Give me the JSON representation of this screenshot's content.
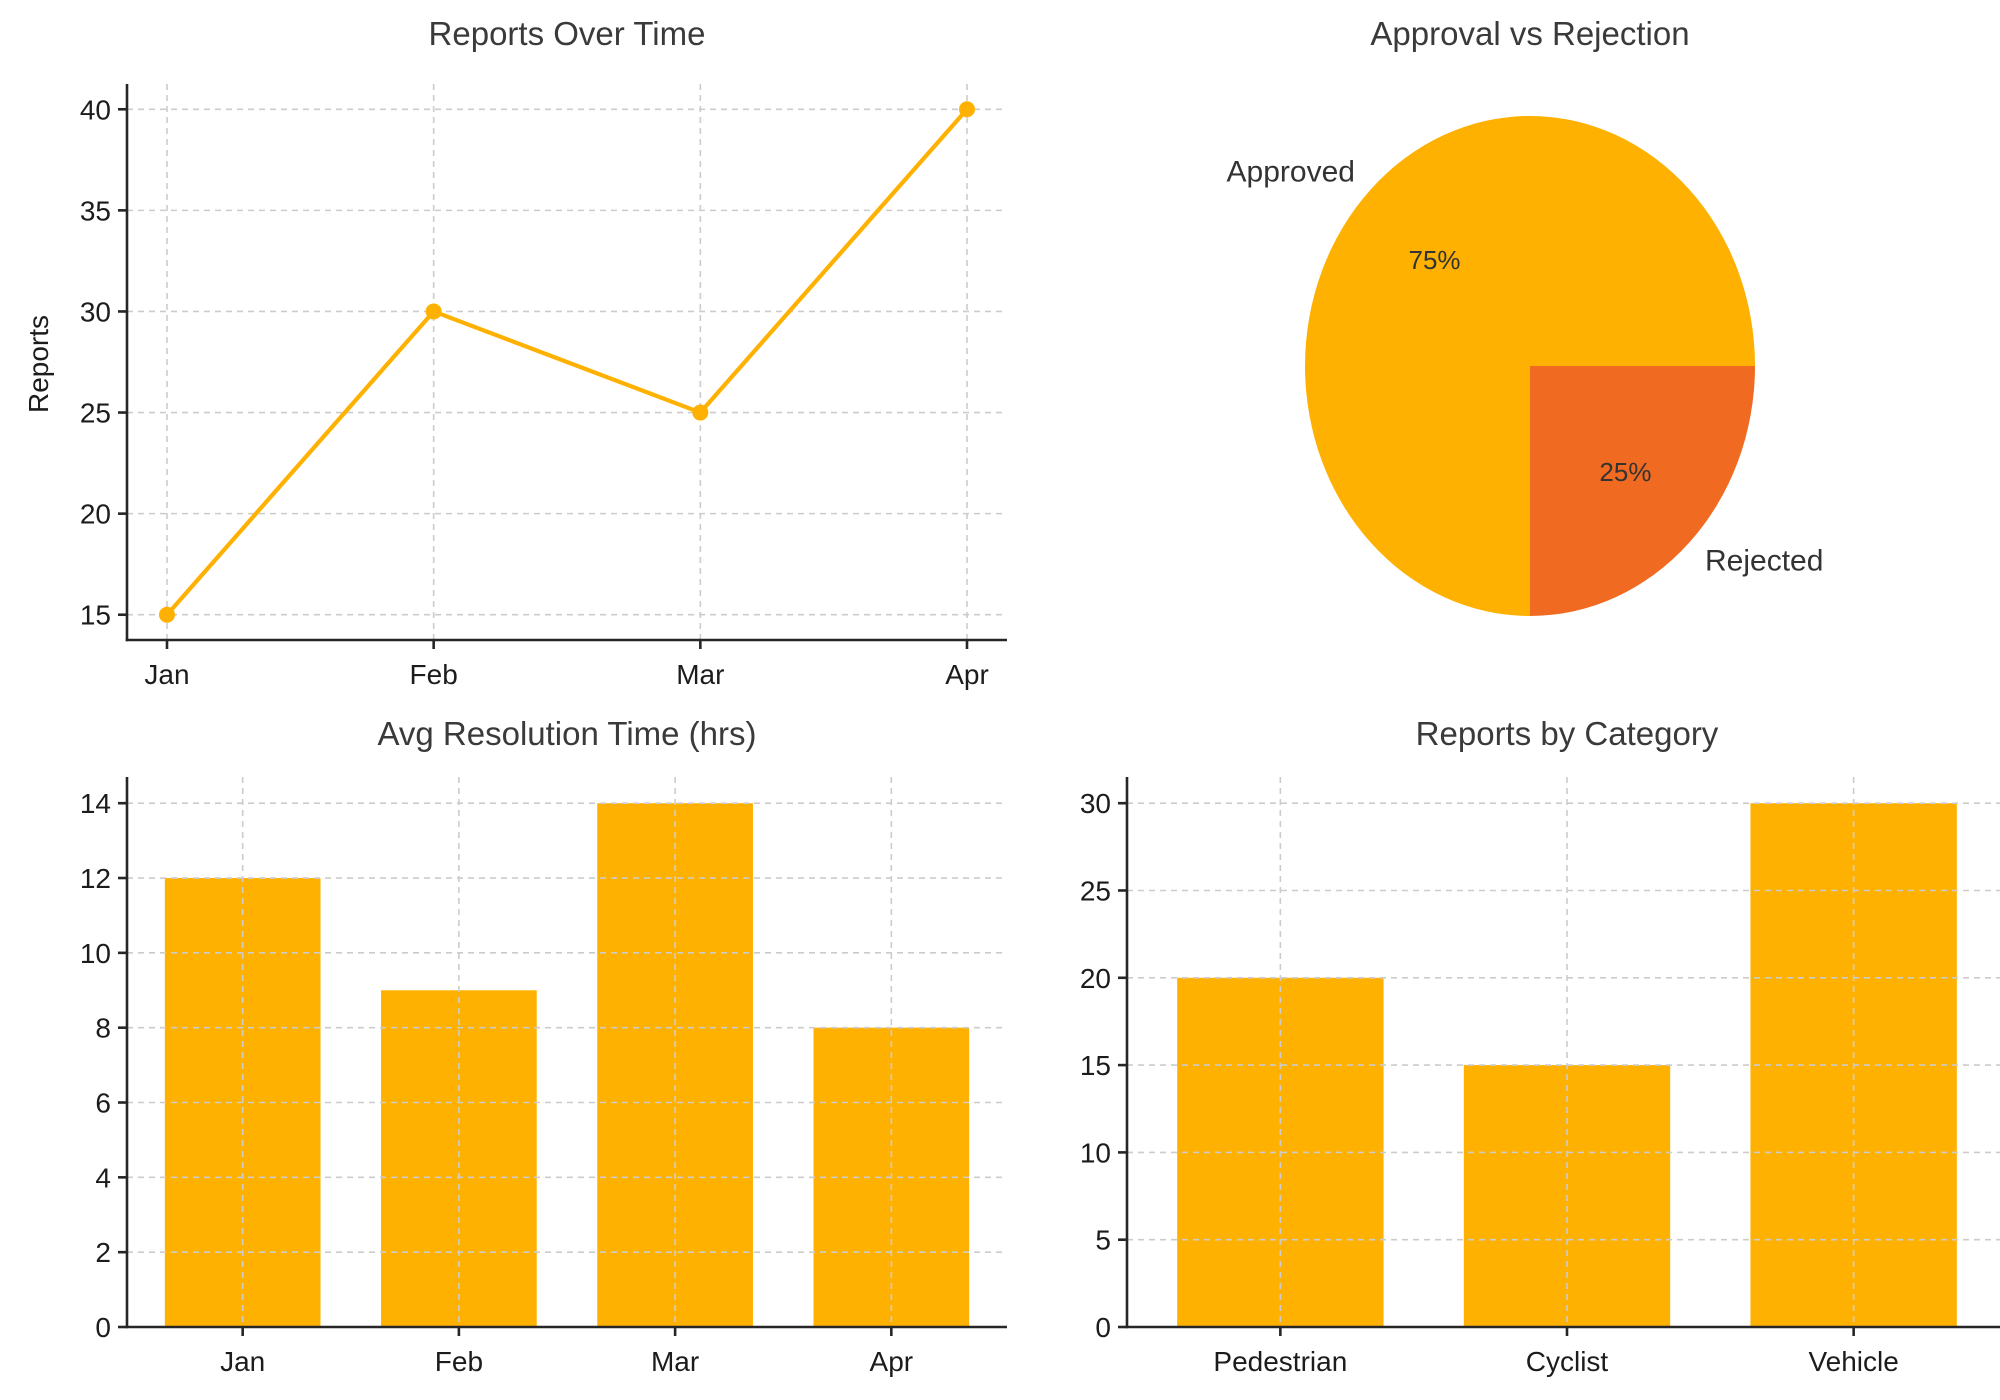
{
  "palette": {
    "amber": "#FFB101",
    "orange": "#F16A21",
    "grid": "#CCCCCC",
    "spine": "#262626",
    "tick_text": "#1C1C1C",
    "title_text": "#3A3A3A",
    "pie_label_text": "#333333",
    "background": "#FFFFFF"
  },
  "chart_data": [
    {
      "type": "line",
      "title": "Reports Over Time",
      "ylabel": "Reports",
      "xlabel": "",
      "categories": [
        "Jan",
        "Feb",
        "Mar",
        "Apr"
      ],
      "values": [
        15,
        30,
        25,
        40
      ],
      "yticks": [
        15,
        20,
        25,
        30,
        35,
        40
      ],
      "ylim": [
        13.75,
        41.25
      ],
      "grid": true,
      "legend": "none",
      "color": "amber",
      "marker": "circle"
    },
    {
      "type": "pie",
      "title": "Approval vs Rejection",
      "slices": [
        {
          "label": "Approved",
          "value": 75,
          "pct_label": "75%",
          "color": "amber"
        },
        {
          "label": "Rejected",
          "value": 25,
          "pct_label": "25%",
          "color": "orange"
        }
      ],
      "start_angle": 0,
      "direction": "counterclockwise",
      "legend": "none"
    },
    {
      "type": "bar",
      "title": "Avg Resolution Time (hrs)",
      "ylabel": "",
      "xlabel": "",
      "categories": [
        "Jan",
        "Feb",
        "Mar",
        "Apr"
      ],
      "values": [
        12,
        9,
        14,
        8
      ],
      "yticks": [
        0,
        2,
        4,
        6,
        8,
        10,
        12,
        14
      ],
      "ylim": [
        0,
        14.7
      ],
      "grid": true,
      "legend": "none",
      "color": "amber"
    },
    {
      "type": "bar",
      "title": "Reports by Category",
      "ylabel": "",
      "xlabel": "",
      "categories": [
        "Pedestrian",
        "Cyclist",
        "Vehicle"
      ],
      "values": [
        20,
        15,
        30
      ],
      "yticks": [
        0,
        5,
        10,
        15,
        20,
        25,
        30
      ],
      "ylim": [
        0,
        31.5
      ],
      "grid": true,
      "legend": "none",
      "color": "amber"
    }
  ]
}
